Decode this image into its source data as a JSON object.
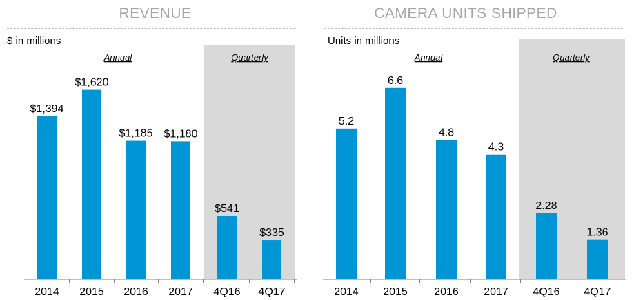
{
  "colors": {
    "bar": "#0096d6",
    "shade": "#d9d9d9",
    "title": "#a6a6a6",
    "rule": "#808080"
  },
  "chart_data": [
    {
      "type": "bar",
      "title": "REVENUE",
      "unit_label": "$ in millions",
      "section_labels": {
        "annual": "Annual",
        "quarterly": "Quarterly"
      },
      "categories": [
        "2014",
        "2015",
        "2016",
        "2017",
        "4Q16",
        "4Q17"
      ],
      "values": [
        1394,
        1620,
        1185,
        1180,
        541,
        335
      ],
      "data_labels": [
        "$1,394",
        "$1,620",
        "$1,185",
        "$1,180",
        "$541",
        "$335"
      ],
      "shaded_categories": [
        "4Q16",
        "4Q17"
      ],
      "ylim": [
        0,
        1800
      ],
      "grid": false,
      "xlabel": "",
      "ylabel": ""
    },
    {
      "type": "bar",
      "title": "CAMERA UNITS SHIPPED",
      "unit_label": "Units in millions",
      "section_labels": {
        "annual": "Annual",
        "quarterly": "Quarterly"
      },
      "categories": [
        "2014",
        "2015",
        "2016",
        "2017",
        "4Q16",
        "4Q17"
      ],
      "values": [
        5.2,
        6.6,
        4.8,
        4.3,
        2.28,
        1.36
      ],
      "data_labels": [
        "5.2",
        "6.6",
        "4.8",
        "4.3",
        "2.28",
        "1.36"
      ],
      "shaded_categories": [
        "4Q16",
        "4Q17"
      ],
      "ylim": [
        0,
        7.33
      ],
      "grid": false,
      "xlabel": "",
      "ylabel": ""
    }
  ]
}
